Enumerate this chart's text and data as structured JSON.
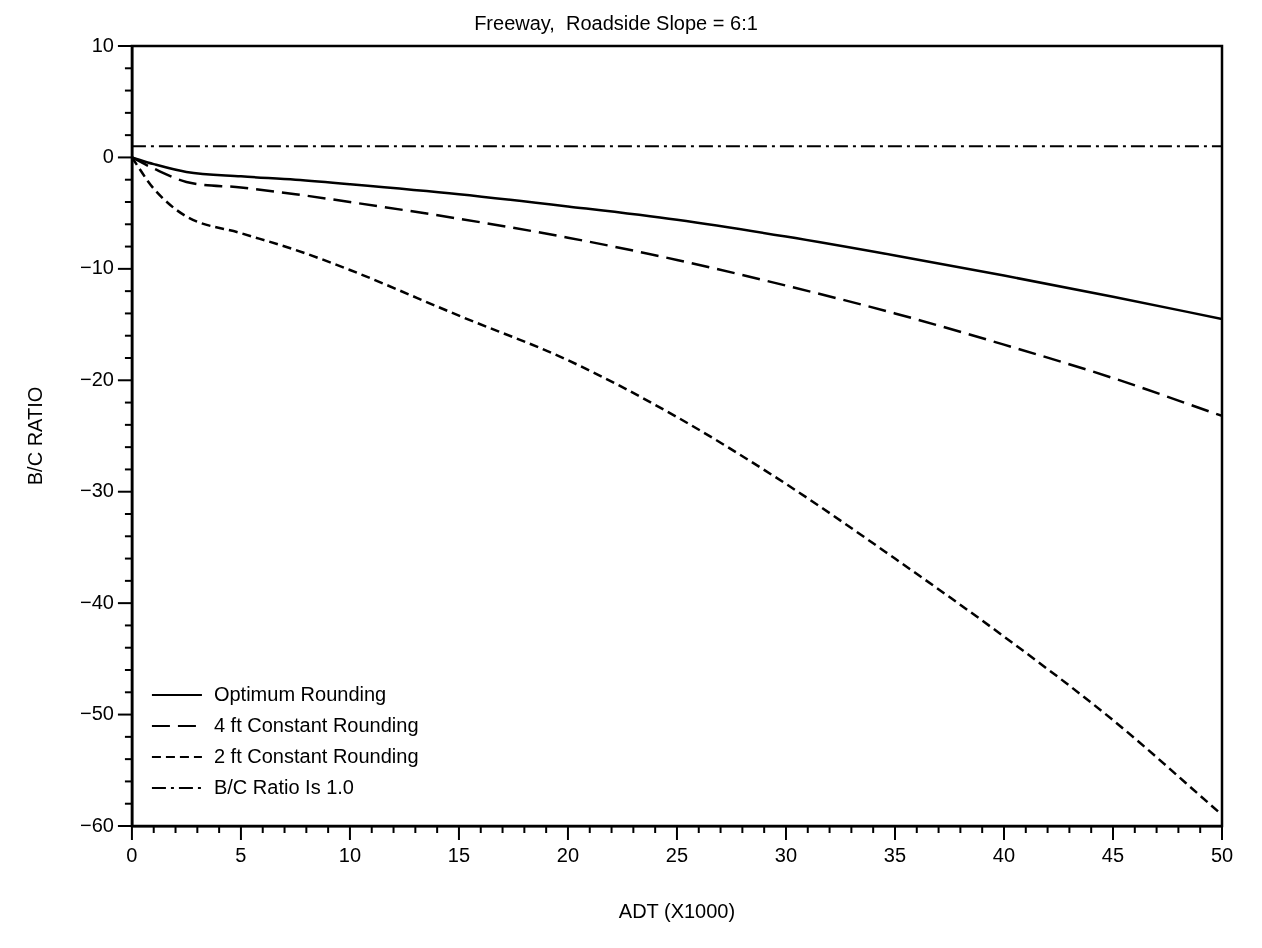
{
  "chart_data": {
    "type": "line",
    "title": "Freeway,  Roadside Slope = 6:1",
    "xlabel": "ADT (X1000)",
    "ylabel": "B/C RATIO",
    "x": [
      0,
      1,
      2.5,
      5,
      7.5,
      10,
      15,
      20,
      25,
      30,
      35,
      40,
      45,
      50
    ],
    "series": [
      {
        "name": "Optimum Rounding",
        "color": "#000000",
        "line_style": "solid",
        "values": [
          0,
          -0.6,
          -1.3,
          -1.7,
          -2.0,
          -2.4,
          -3.3,
          -4.4,
          -5.6,
          -7.1,
          -8.8,
          -10.6,
          -12.5,
          -14.5
        ]
      },
      {
        "name": "4 ft Constant Rounding",
        "color": "#000000",
        "line_style": "dashed",
        "values": [
          0,
          -1.0,
          -2.2,
          -2.7,
          -3.3,
          -4.0,
          -5.5,
          -7.2,
          -9.2,
          -11.5,
          -14.0,
          -16.8,
          -19.8,
          -23.2
        ]
      },
      {
        "name": "2 ft Constant Rounding",
        "color": "#000000",
        "line_style": "dotted",
        "values": [
          0,
          -2.8,
          -5.3,
          -6.8,
          -8.3,
          -10.1,
          -14.2,
          -18.2,
          -23.3,
          -29.3,
          -36.0,
          -43.0,
          -50.5,
          -59.0
        ]
      }
    ],
    "ref_lines": [
      {
        "axis": "y",
        "value": 1,
        "label": "B/C Ratio Is 1.0",
        "color": "#000000",
        "line_style": "dashdot"
      }
    ],
    "xlim": [
      0,
      50
    ],
    "ylim": [
      -60,
      10
    ],
    "xticks": [
      0,
      {
        "value": 1,
        "label": null
      },
      {
        "value": 2,
        "label": null
      },
      {
        "value": 3,
        "label": null
      },
      {
        "value": 4,
        "label": null
      },
      5,
      {
        "value": 6,
        "label": null
      },
      {
        "value": 7,
        "label": null
      },
      {
        "value": 8,
        "label": null
      },
      {
        "value": 9,
        "label": null
      },
      10,
      {
        "value": 11,
        "label": null
      },
      {
        "value": 12,
        "label": null
      },
      {
        "value": 13,
        "label": null
      },
      {
        "value": 14,
        "label": null
      },
      15,
      {
        "value": 16,
        "label": null
      },
      {
        "value": 17,
        "label": null
      },
      {
        "value": 18,
        "label": null
      },
      {
        "value": 19,
        "label": null
      },
      20,
      {
        "value": 21,
        "label": null
      },
      {
        "value": 22,
        "label": null
      },
      {
        "value": 23,
        "label": null
      },
      {
        "value": 24,
        "label": null
      },
      25,
      {
        "value": 26,
        "label": null
      },
      {
        "value": 27,
        "label": null
      },
      {
        "value": 28,
        "label": null
      },
      {
        "value": 29,
        "label": null
      },
      30,
      {
        "value": 31,
        "label": null
      },
      {
        "value": 32,
        "label": null
      },
      {
        "value": 33,
        "label": null
      },
      {
        "value": 34,
        "label": null
      },
      35,
      {
        "value": 36,
        "label": null
      },
      {
        "value": 37,
        "label": null
      },
      {
        "value": 38,
        "label": null
      },
      {
        "value": 39,
        "label": null
      },
      40,
      {
        "value": 41,
        "label": null
      },
      {
        "value": 42,
        "label": null
      },
      {
        "value": 43,
        "label": null
      },
      {
        "value": 44,
        "label": null
      },
      45,
      {
        "value": 46,
        "label": null
      },
      {
        "value": 47,
        "label": null
      },
      {
        "value": 48,
        "label": null
      },
      {
        "value": 49,
        "label": null
      },
      50
    ],
    "yticks": [
      -60,
      {
        "value": -58,
        "label": null
      },
      {
        "value": -56,
        "label": null
      },
      {
        "value": -54,
        "label": null
      },
      {
        "value": -52,
        "label": null
      },
      -50,
      {
        "value": -48,
        "label": null
      },
      {
        "value": -46,
        "label": null
      },
      {
        "value": -44,
        "label": null
      },
      {
        "value": -42,
        "label": null
      },
      -40,
      {
        "value": -38,
        "label": null
      },
      {
        "value": -36,
        "label": null
      },
      {
        "value": -34,
        "label": null
      },
      {
        "value": -32,
        "label": null
      },
      -30,
      {
        "value": -28,
        "label": null
      },
      {
        "value": -26,
        "label": null
      },
      {
        "value": -24,
        "label": null
      },
      {
        "value": -22,
        "label": null
      },
      -20,
      {
        "value": -18,
        "label": null
      },
      {
        "value": -16,
        "label": null
      },
      {
        "value": -14,
        "label": null
      },
      {
        "value": -12,
        "label": null
      },
      -10,
      {
        "value": -8,
        "label": null
      },
      {
        "value": -6,
        "label": null
      },
      {
        "value": -4,
        "label": null
      },
      {
        "value": -2,
        "label": null
      },
      0,
      {
        "value": 2,
        "label": null
      },
      {
        "value": 4,
        "label": null
      },
      {
        "value": 6,
        "label": null
      },
      {
        "value": 8,
        "label": null
      },
      10
    ],
    "grid": false,
    "legend": "bottom left",
    "marker": "none"
  }
}
